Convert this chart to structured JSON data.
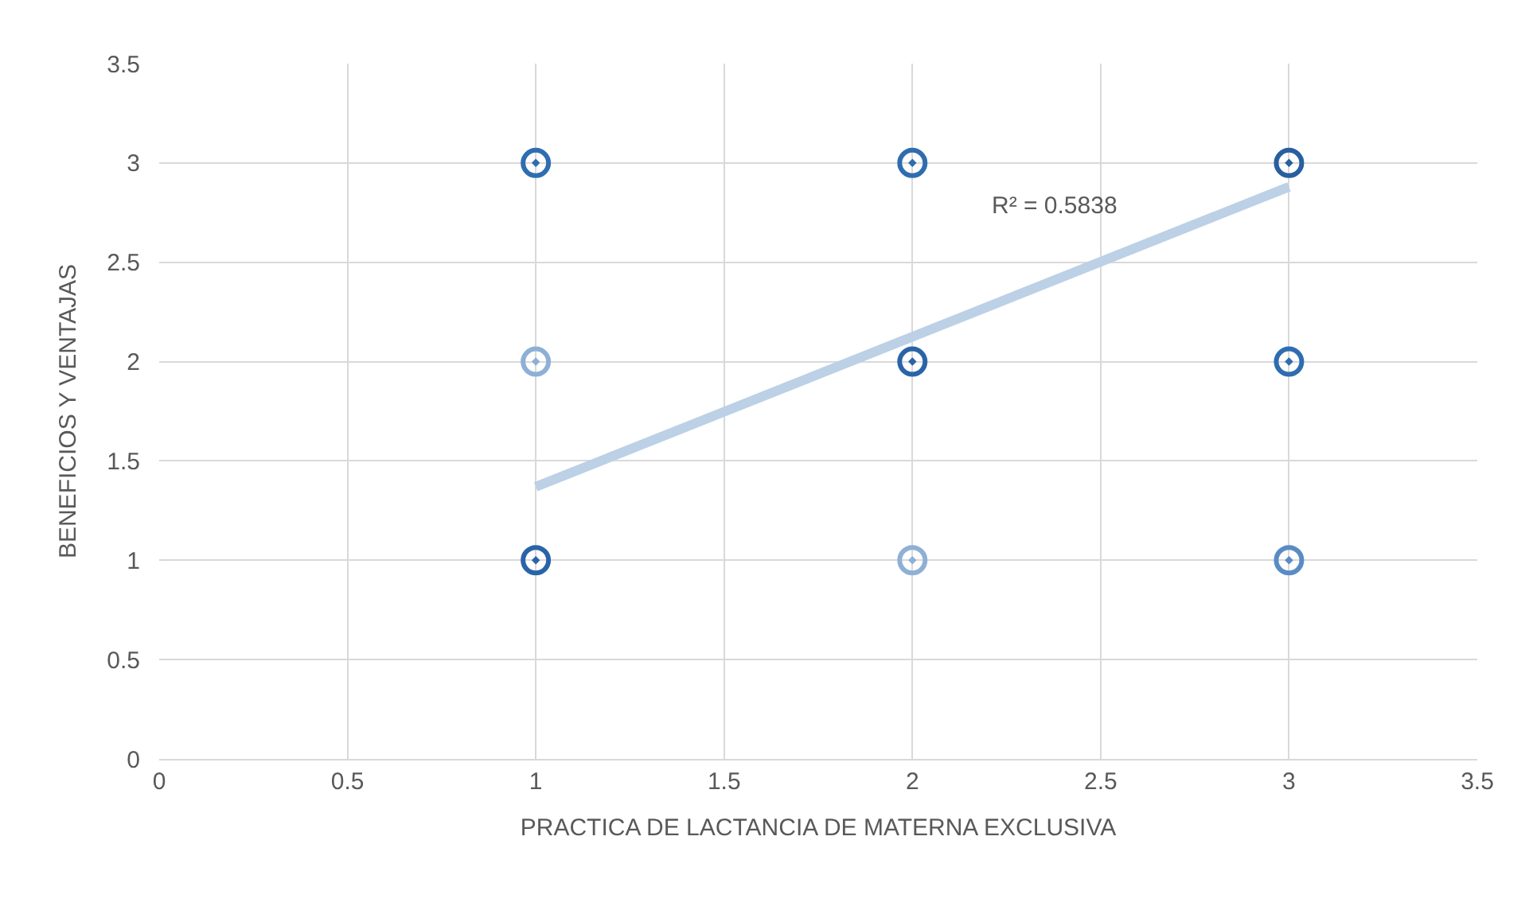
{
  "chart_data": {
    "type": "scatter",
    "xlabel": "PRACTICA DE LACTANCIA DE MATERNA EXCLUSIVA",
    "ylabel": "BENEFICIOS Y VENTAJAS",
    "series": [
      {
        "x": [
          1,
          1,
          1,
          2,
          2,
          2,
          3,
          3,
          3
        ],
        "values": [
          3,
          2,
          1,
          3,
          2,
          1,
          3,
          2,
          1
        ],
        "colors": [
          "#2f6db0",
          "#8fb0d6",
          "#2a64a8",
          "#2f6db0",
          "#2a64a8",
          "#8fb0d6",
          "#285f9f",
          "#2f6db0",
          "#5a8cc4"
        ],
        "marker": "circle"
      },
      {
        "type": "line",
        "x": [
          1,
          3
        ],
        "values": [
          1.37,
          2.88
        ],
        "color": "#bcd0e6",
        "line_style": "solid"
      }
    ],
    "annotations": [
      "R² = 0.5838"
    ],
    "xlim": [
      0,
      3.5
    ],
    "xticks": [
      0,
      0.5,
      1,
      1.5,
      2,
      2.5,
      3,
      3.5
    ],
    "ylim": [
      0,
      3.5
    ],
    "yticks": [
      0,
      0.5,
      1,
      1.5,
      2,
      2.5,
      3,
      3.5
    ],
    "grid": true,
    "legend": false
  }
}
